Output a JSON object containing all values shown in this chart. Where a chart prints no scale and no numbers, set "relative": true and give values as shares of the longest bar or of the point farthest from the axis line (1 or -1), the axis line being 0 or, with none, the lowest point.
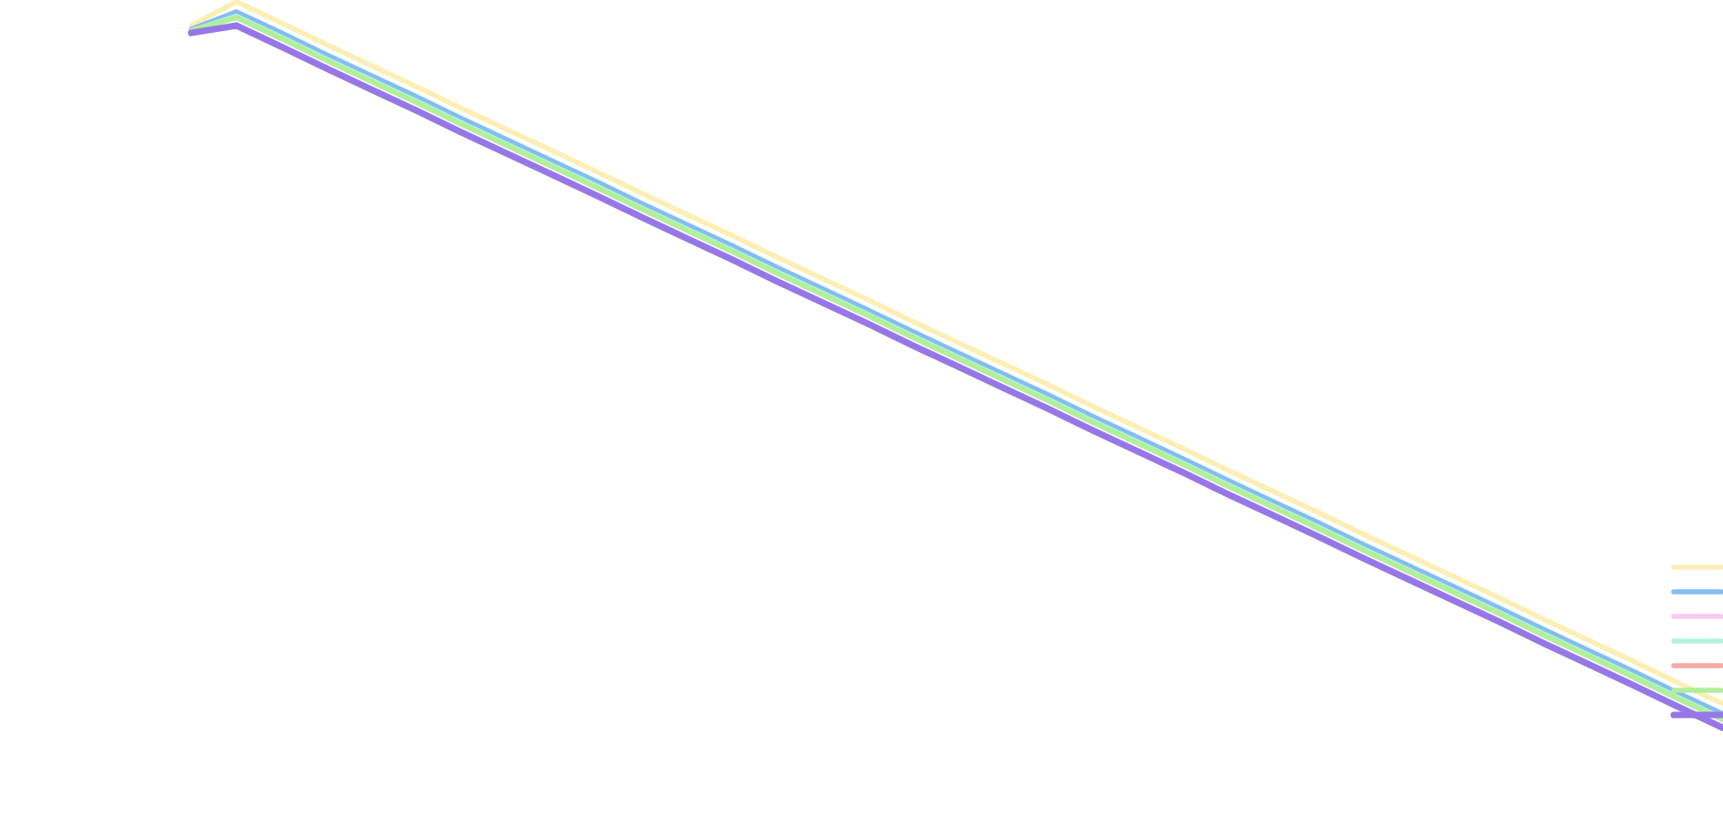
{
  "chart_data": {
    "type": "line",
    "relative": true,
    "grid": false,
    "marker": "none",
    "line_style": "solid",
    "categories": [
      null,
      null,
      null,
      null,
      null,
      null,
      null,
      null,
      null,
      null,
      null,
      null,
      null,
      null,
      null,
      null,
      null,
      null,
      null,
      null,
      null,
      null,
      null,
      null,
      null,
      null,
      null,
      null,
      null,
      null,
      null,
      null,
      null,
      null,
      null
    ],
    "series": [
      {
        "color": "#fbefb5",
        "values": [
          0.967,
          1.0,
          0.971,
          0.941,
          0.912,
          0.883,
          0.853,
          0.824,
          0.795,
          0.766,
          0.736,
          0.707,
          0.678,
          0.648,
          0.619,
          0.59,
          0.56,
          0.531,
          0.502,
          0.473,
          0.443,
          0.414,
          0.385,
          0.355,
          0.326,
          0.297,
          0.267,
          0.238,
          0.209,
          0.18,
          0.15,
          0.121,
          0.092,
          0.062,
          0.033
        ]
      },
      {
        "color": "#82bdf5",
        "values": [
          0.962,
          0.986,
          0.957,
          0.927,
          0.898,
          0.869,
          0.839,
          0.81,
          0.781,
          0.752,
          0.722,
          0.693,
          0.664,
          0.634,
          0.605,
          0.576,
          0.546,
          0.517,
          0.488,
          0.459,
          0.429,
          0.4,
          0.371,
          0.341,
          0.312,
          0.283,
          0.253,
          0.224,
          0.195,
          0.166,
          0.136,
          0.107,
          0.078,
          0.048,
          0.019
        ]
      },
      {
        "color": "#f9c9ee",
        "values": [
          null,
          null,
          null,
          null,
          null,
          null,
          null,
          null,
          null,
          null,
          null,
          null,
          null,
          null,
          null,
          null,
          null,
          null,
          null,
          null,
          null,
          null,
          null,
          null,
          null,
          null,
          null,
          null,
          null,
          null,
          null,
          null,
          null,
          null,
          null
        ]
      },
      {
        "color": "#b5f2dc",
        "values": [
          0.96,
          0.98,
          0.951,
          0.921,
          0.892,
          0.863,
          0.833,
          0.804,
          0.775,
          0.746,
          0.716,
          0.687,
          0.658,
          0.628,
          0.599,
          0.57,
          0.54,
          0.511,
          0.482,
          0.453,
          0.423,
          0.394,
          0.365,
          0.335,
          0.306,
          0.277,
          0.247,
          0.218,
          0.189,
          0.16,
          0.13,
          0.101,
          0.072,
          0.042,
          0.013
        ]
      },
      {
        "color": "#f7a8a8",
        "values": [
          null,
          null,
          null,
          null,
          null,
          null,
          null,
          null,
          null,
          null,
          null,
          null,
          null,
          null,
          null,
          null,
          null,
          null,
          null,
          null,
          null,
          null,
          null,
          null,
          null,
          null,
          null,
          null,
          null,
          null,
          null,
          null,
          null,
          null,
          null
        ]
      },
      {
        "color": "#b1ef9a",
        "values": [
          0.96,
          0.978,
          0.949,
          0.919,
          0.89,
          0.861,
          0.831,
          0.802,
          0.773,
          0.744,
          0.714,
          0.685,
          0.656,
          0.626,
          0.597,
          0.568,
          0.538,
          0.509,
          0.48,
          0.451,
          0.421,
          0.392,
          0.363,
          0.333,
          0.304,
          0.275,
          0.245,
          0.216,
          0.187,
          0.158,
          0.128,
          0.099,
          0.07,
          0.04,
          0.011
        ]
      },
      {
        "color": "#9777e8",
        "values": [
          0.957,
          0.967,
          0.938,
          0.908,
          0.879,
          0.85,
          0.82,
          0.791,
          0.762,
          0.733,
          0.703,
          0.674,
          0.645,
          0.615,
          0.586,
          0.557,
          0.527,
          0.498,
          0.469,
          0.44,
          0.41,
          0.381,
          0.352,
          0.322,
          0.293,
          0.264,
          0.234,
          0.205,
          0.176,
          0.147,
          0.117,
          0.088,
          0.059,
          0.029,
          0.0
        ]
      }
    ]
  }
}
